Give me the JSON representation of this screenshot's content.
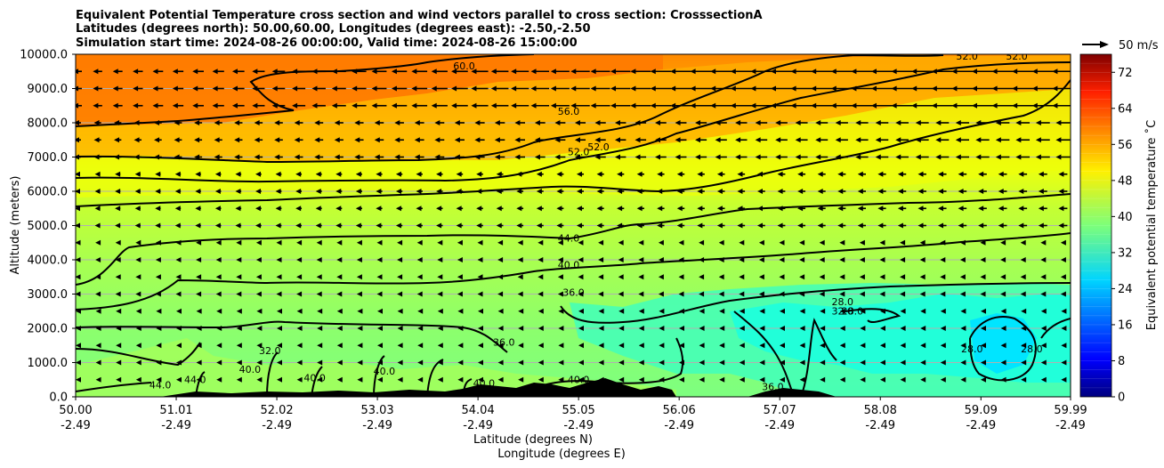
{
  "chart_data": {
    "type": "heatmap",
    "title_lines": [
      "Equivalent Potential Temperature cross section and wind vectors parallel to cross section: CrosssectionA",
      "Latitudes (degrees north): 50.00,60.00, Longitudes (degrees east): -2.50,-2.50",
      "Simulation start time: 2024-08-26 00:00:00, Valid time: 2024-08-26 15:00:00"
    ],
    "ylabel": "Altitude (meters)",
    "xlabel_lines": [
      "Latitude (degrees N)",
      "Longitude (degrees E)"
    ],
    "ylim": [
      0,
      10000
    ],
    "y_ticks": [
      "0.0",
      "1000.0",
      "2000.0",
      "3000.0",
      "4000.0",
      "5000.0",
      "6000.0",
      "7000.0",
      "8000.0",
      "9000.0",
      "10000.0"
    ],
    "y_tick_values": [
      0,
      1000,
      2000,
      3000,
      4000,
      5000,
      6000,
      7000,
      8000,
      9000,
      10000
    ],
    "x_ticks_lat": [
      "50.00",
      "51.01",
      "52.02",
      "53.03",
      "54.04",
      "55.05",
      "56.06",
      "57.07",
      "58.08",
      "59.09",
      "59.99"
    ],
    "x_ticks_lon": [
      "-2.49",
      "-2.49",
      "-2.49",
      "-2.49",
      "-2.49",
      "-2.49",
      "-2.49",
      "-2.49",
      "-2.49",
      "-2.49",
      "-2.49"
    ],
    "x_tick_values": [
      50.0,
      51.01,
      52.02,
      53.03,
      54.04,
      55.05,
      56.06,
      57.07,
      58.08,
      59.09,
      59.99
    ],
    "xlim": [
      50.0,
      59.99
    ],
    "grid": "horizontal",
    "colorbar": {
      "label": "Equivalent potential temperature ˚C",
      "vmin": 0,
      "vmax": 76,
      "ticks": [
        "0",
        "8",
        "16",
        "24",
        "32",
        "40",
        "48",
        "56",
        "64",
        "72"
      ],
      "tick_values": [
        0,
        8,
        16,
        24,
        32,
        40,
        48,
        56,
        64,
        72
      ],
      "colormap": "jet"
    },
    "quiver_key": {
      "label": "50 m/s"
    },
    "contour_labels": [
      {
        "text": "60.0",
        "lat": 53.9,
        "alt": 9560
      },
      {
        "text": "56.0",
        "lat": 54.95,
        "alt": 8230
      },
      {
        "text": "52.0",
        "lat": 55.05,
        "alt": 7050
      },
      {
        "text": "52.0",
        "lat": 55.25,
        "alt": 7200
      },
      {
        "text": "52.0",
        "lat": 58.95,
        "alt": 9850
      },
      {
        "text": "52.0",
        "lat": 59.45,
        "alt": 9850
      },
      {
        "text": "44.0",
        "lat": 54.95,
        "alt": 4530
      },
      {
        "text": "40.0",
        "lat": 54.95,
        "alt": 3750
      },
      {
        "text": "36.0",
        "lat": 55.0,
        "alt": 2950
      },
      {
        "text": "36.0",
        "lat": 54.3,
        "alt": 1500
      },
      {
        "text": "32.0",
        "lat": 57.7,
        "alt": 2400
      },
      {
        "text": "28.0",
        "lat": 57.7,
        "alt": 2680
      },
      {
        "text": "28.0",
        "lat": 57.8,
        "alt": 2400
      },
      {
        "text": "32.0",
        "lat": 51.95,
        "alt": 1250
      },
      {
        "text": "40.0",
        "lat": 51.75,
        "alt": 700
      },
      {
        "text": "40.0",
        "lat": 52.4,
        "alt": 450
      },
      {
        "text": "40.0",
        "lat": 53.1,
        "alt": 650
      },
      {
        "text": "44.0",
        "lat": 51.2,
        "alt": 400
      },
      {
        "text": "44.0",
        "lat": 50.85,
        "alt": 250
      },
      {
        "text": "40.0",
        "lat": 54.1,
        "alt": 300
      },
      {
        "text": "40.0",
        "lat": 55.05,
        "alt": 400
      },
      {
        "text": "28.0",
        "lat": 59.0,
        "alt": 1300
      },
      {
        "text": "28.0",
        "lat": 59.6,
        "alt": 1300
      },
      {
        "text": "36.0",
        "lat": 57.0,
        "alt": 200
      }
    ]
  }
}
